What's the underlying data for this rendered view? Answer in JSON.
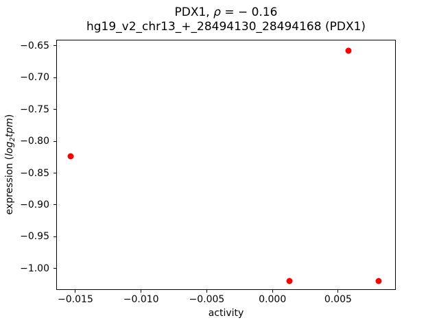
{
  "figure": {
    "title_line1": {
      "prefix": "PDX1, ",
      "rho": "ρ",
      "suffix": " = − 0.16"
    },
    "title_line2": "hg19_v2_chr13_+_28494130_28494168 (PDX1)",
    "xlabel": "activity",
    "ylabel": {
      "prefix": "expression (",
      "italic1": "log",
      "sub": "2",
      "italic2": "tpm",
      "suffix": ")"
    }
  },
  "chart_data": {
    "type": "scatter",
    "title": "PDX1, ρ = −0.16",
    "subtitle": "hg19_v2_chr13_+_28494130_28494168 (PDX1)",
    "xlabel": "activity",
    "ylabel": "expression (log2 tpm)",
    "correlation_rho": -0.16,
    "gene": "PDX1",
    "region_id": "hg19_v2_chr13_+_28494130_28494168",
    "marker_color": "#ff0000",
    "grid": false,
    "legend": null,
    "points": [
      {
        "x": -0.01535,
        "y": -0.823
      },
      {
        "x": 0.00578,
        "y": -0.6575
      },
      {
        "x": 0.00132,
        "y": -1.0201
      },
      {
        "x": 0.0081,
        "y": -1.0201
      }
    ],
    "xlim": [
      -0.01646,
      0.00939
    ],
    "ylim": [
      -1.0337,
      -0.6403
    ],
    "xticks": [
      {
        "value": -0.015,
        "label": "−0.015"
      },
      {
        "value": -0.01,
        "label": "−0.010"
      },
      {
        "value": -0.005,
        "label": "−0.005"
      },
      {
        "value": 0.0,
        "label": "0.000"
      },
      {
        "value": 0.005,
        "label": "0.005"
      }
    ],
    "yticks": [
      {
        "value": -0.65,
        "label": "−0.65"
      },
      {
        "value": -0.7,
        "label": "−0.70"
      },
      {
        "value": -0.75,
        "label": "−0.75"
      },
      {
        "value": -0.8,
        "label": "−0.80"
      },
      {
        "value": -0.85,
        "label": "−0.85"
      },
      {
        "value": -0.9,
        "label": "−0.90"
      },
      {
        "value": -0.95,
        "label": "−0.95"
      },
      {
        "value": -1.0,
        "label": "−1.00"
      }
    ]
  }
}
